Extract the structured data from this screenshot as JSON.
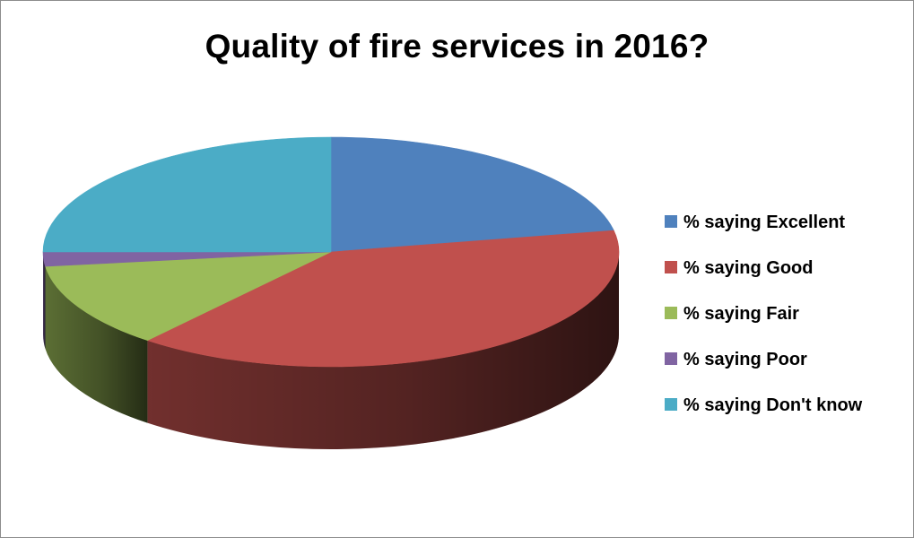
{
  "chart_data": {
    "type": "pie",
    "title": "Quality of fire services in 2016?",
    "three_d": true,
    "legend_position": "right",
    "categories": [
      "% saying Excellent",
      "% saying Good",
      "% saying Fair",
      "% saying Poor",
      "% saying Don't know"
    ],
    "values": [
      22,
      39,
      12,
      2,
      25
    ],
    "colors": [
      "#4f81bd",
      "#c0504d",
      "#9bbb59",
      "#8064a2",
      "#4bacc6"
    ]
  }
}
